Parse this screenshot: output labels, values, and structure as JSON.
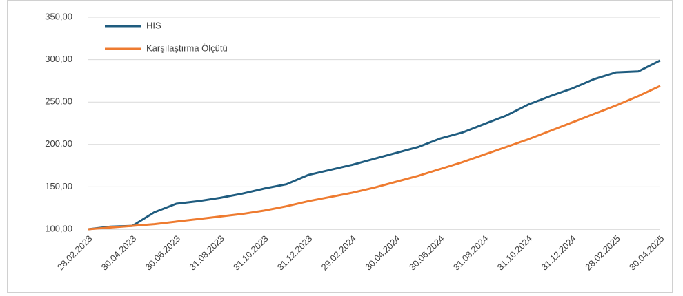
{
  "chart_data": {
    "type": "line",
    "categories": [
      "28.02.2023",
      null,
      "30.04.2023",
      null,
      "30.06.2023",
      null,
      "31.08.2023",
      null,
      "31.10.2023",
      null,
      "31.12.2023",
      null,
      "29.02.2024",
      null,
      "30.04.2024",
      null,
      "30.06.2024",
      null,
      "31.08.2024",
      null,
      "31.10.2024",
      null,
      "31.12.2024",
      null,
      "28.02.2025",
      null,
      "30.04.2025"
    ],
    "series": [
      {
        "name": "HIS",
        "color": "#1f5c7f",
        "values": [
          100,
          103,
          104,
          120,
          130,
          133,
          137,
          142,
          148,
          153,
          164,
          170,
          176,
          183,
          190,
          197,
          207,
          214,
          224,
          234,
          247,
          257,
          266,
          277,
          285,
          286,
          299
        ]
      },
      {
        "name": "Karşılaştırma Ölçütü",
        "color": "#ee7b30",
        "values": [
          100,
          102,
          104,
          106,
          109,
          112,
          115,
          118,
          122,
          127,
          133,
          138,
          143,
          149,
          156,
          163,
          171,
          179,
          188,
          197,
          206,
          216,
          226,
          236,
          246,
          257,
          269
        ]
      }
    ],
    "ylim": [
      100,
      350
    ],
    "yticks": [
      {
        "value": 100,
        "label": "100,00"
      },
      {
        "value": 150,
        "label": "150,00"
      },
      {
        "value": 200,
        "label": "200,00"
      },
      {
        "value": 250,
        "label": "250,00"
      },
      {
        "value": 300,
        "label": "300,00"
      },
      {
        "value": 350,
        "label": "350,00"
      }
    ],
    "grid": true,
    "legend": "upper left"
  }
}
